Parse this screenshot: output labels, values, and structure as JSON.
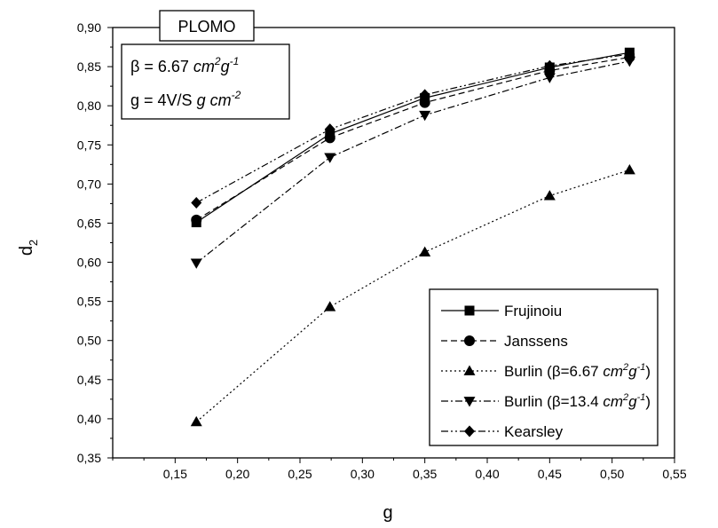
{
  "chart_data": {
    "type": "line",
    "title": "PLOMO",
    "annotation": {
      "line1": {
        "pre": "β = 6.67 ",
        "unit": "cm",
        "sup1": "2",
        "unit2": "g",
        "sup2": "-1"
      },
      "line2": {
        "pre": "g = 4V/S ",
        "unit": "g cm",
        "sup1": "-2"
      }
    },
    "xlabel": "g",
    "ylabel": "d",
    "ylabel_sub": "2",
    "xlim": [
      0.1,
      0.55
    ],
    "ylim": [
      0.35,
      0.9
    ],
    "xticks": [
      "0,15",
      "0,20",
      "0,25",
      "0,30",
      "0,35",
      "0,40",
      "0,45",
      "0,50",
      "0,55"
    ],
    "yticks": [
      "0,35",
      "0,40",
      "0,45",
      "0,50",
      "0,55",
      "0,60",
      "0,65",
      "0,70",
      "0,75",
      "0,80",
      "0,85",
      "0,90"
    ],
    "x": [
      0.167,
      0.274,
      0.35,
      0.45,
      0.514
    ],
    "legend_position": "bottom-right",
    "series": [
      {
        "name": "Frujinoiu",
        "values": [
          0.651,
          0.764,
          0.81,
          0.849,
          0.868
        ],
        "marker": "square",
        "dash": ""
      },
      {
        "name": "Janssens",
        "values": [
          0.654,
          0.759,
          0.804,
          0.845,
          0.862
        ],
        "marker": "circle",
        "dash": "7,4"
      },
      {
        "name": "Burlin (β=6.67 cm²g⁻¹)",
        "name_parts": {
          "pre": "Burlin (β=6.67 ",
          "unit": "cm",
          "sup1": "2",
          "unit2": "g",
          "sup2": "-1",
          "post": ")"
        },
        "values": [
          0.396,
          0.543,
          0.613,
          0.685,
          0.718
        ],
        "marker": "triangle-up",
        "dash": "2,3"
      },
      {
        "name": "Burlin (β=13.4 cm²g⁻¹)",
        "name_parts": {
          "pre": "Burlin (β=13.4 ",
          "unit": "cm",
          "sup1": "2",
          "unit2": "g",
          "sup2": "-1",
          "post": ")"
        },
        "values": [
          0.599,
          0.734,
          0.788,
          0.836,
          0.857
        ],
        "marker": "triangle-down",
        "dash": "8,3,2,3"
      },
      {
        "name": "Kearsley",
        "values": [
          0.676,
          0.77,
          0.814,
          0.851,
          0.866
        ],
        "marker": "diamond",
        "dash": "8,3,2,3,2,3"
      }
    ]
  }
}
